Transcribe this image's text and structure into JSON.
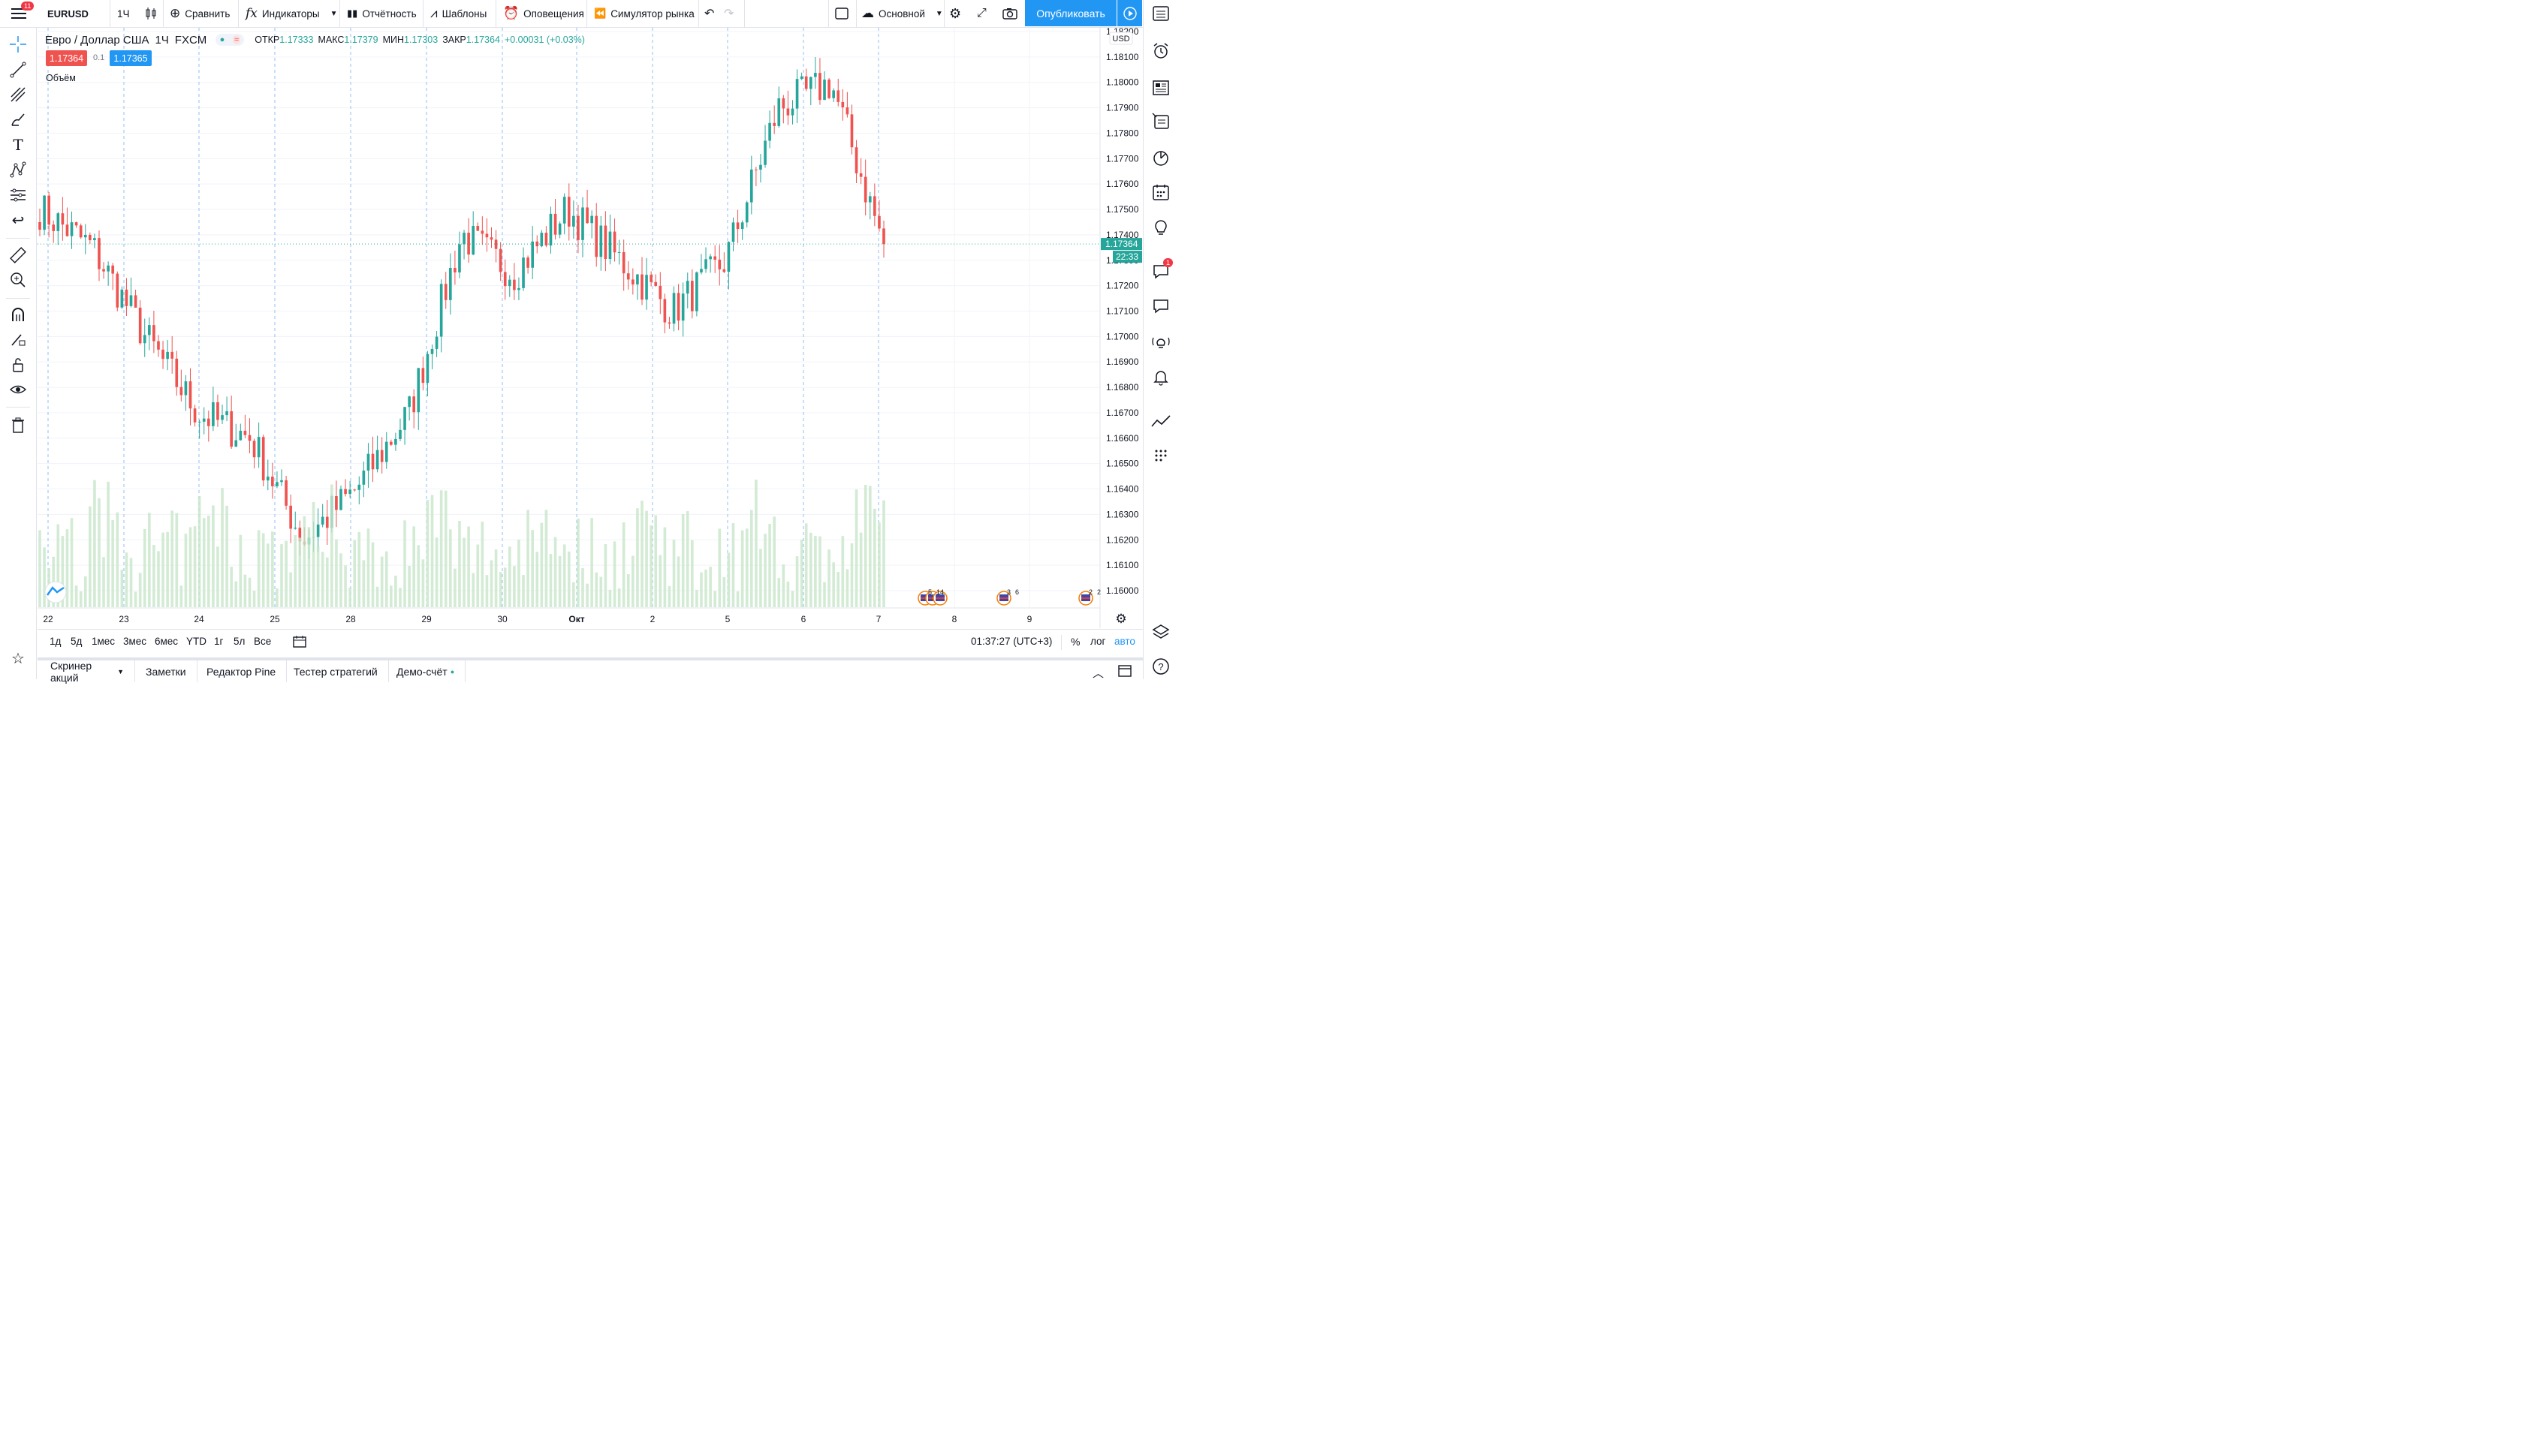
{
  "topbar": {
    "symbol": "EURUSD",
    "interval": "1Ч",
    "compare_label": "Сравнить",
    "indicators_label": "Индикаторы",
    "reports_label": "Отчётность",
    "templates_label": "Шаблоны",
    "alerts_label": "Оповещения",
    "replay_label": "Симулятор рынка",
    "layout_label": "Основной",
    "publish_label": "Опубликовать",
    "menu_badge": "11"
  },
  "legend": {
    "title": "Евро / Доллар США",
    "interval": "1Ч",
    "source": "FXCM",
    "open_label": "ОТКР",
    "open": "1.17333",
    "high_label": "МАКС",
    "high": "1.17379",
    "low_label": "МИН",
    "low": "1.17303",
    "close_label": "ЗАКР",
    "close": "1.17364",
    "change": "+0.00031 (+0.03%)",
    "sell_price": "1.17364",
    "spread": "0.1",
    "buy_price": "1.17365",
    "volume_label": "Объём"
  },
  "price_axis": {
    "currency": "USD",
    "current_price": "1.17364",
    "countdown": "22:33",
    "ticks": [
      "1.18200",
      "1.18100",
      "1.18000",
      "1.17900",
      "1.17800",
      "1.17700",
      "1.17600",
      "1.17500",
      "1.17400",
      "1.17300",
      "1.17200",
      "1.17100",
      "1.17000",
      "1.16900",
      "1.16800",
      "1.16700",
      "1.16600",
      "1.16500",
      "1.16400",
      "1.16300",
      "1.16200",
      "1.16100",
      "1.16000"
    ]
  },
  "time_axis": {
    "ticks": [
      "22",
      "23",
      "24",
      "25",
      "28",
      "29",
      "30",
      "Окт",
      "2",
      "5",
      "6",
      "7",
      "8",
      "9"
    ]
  },
  "events": [
    {
      "label": "5",
      "label2": "14"
    },
    {
      "label": "3",
      "label2": "6"
    },
    {
      "label": "2",
      "label2": "2"
    }
  ],
  "bottombar": {
    "ranges": [
      "1д",
      "5д",
      "1мес",
      "3мес",
      "6мес",
      "YTD",
      "1г",
      "5л",
      "Все"
    ],
    "clock": "01:37:27 (UTC+3)",
    "percent_label": "%",
    "log_label": "лог",
    "auto_label": "авто"
  },
  "panels": {
    "tabs": [
      "Скринер акций",
      "Заметки",
      "Редактор Pine",
      "Тестер стратегий",
      "Демо-счёт"
    ]
  },
  "rightbar": {
    "chat_badge": "1"
  },
  "colors": {
    "up": "#26a69a",
    "down": "#ef5350",
    "volume": "#c8e6c9",
    "accent": "#2196f3"
  },
  "chart_data": {
    "type": "candlestick",
    "symbol": "EURUSD",
    "interval": "1H",
    "ylim": [
      1.1595,
      1.1825
    ],
    "x_labels": [
      "22",
      "23",
      "24",
      "25",
      "28",
      "29",
      "30",
      "Окт",
      "2",
      "5",
      "6",
      "7"
    ],
    "day_close_approx": [
      1.17,
      1.168,
      1.1665,
      1.1675,
      1.1625,
      1.1685,
      1.1735,
      1.1725,
      1.1735,
      1.1715,
      1.179,
      1.1736
    ],
    "key_closes": [
      1.175,
      1.1735,
      1.17,
      1.167,
      1.166,
      1.162,
      1.164,
      1.167,
      1.174,
      1.1725,
      1.175,
      1.173,
      1.171,
      1.173,
      1.179,
      1.18,
      1.1736
    ]
  }
}
